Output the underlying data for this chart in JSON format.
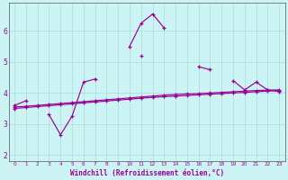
{
  "xlabel": "Windchill (Refroidissement éolien,°C)",
  "bg_color": "#cdf4f4",
  "line_color": "#990099",
  "grid_color": "#aadddd",
  "xlim": [
    -0.5,
    23.5
  ],
  "ylim": [
    1.8,
    6.9
  ],
  "xtick_labels": [
    "0",
    "1",
    "2",
    "3",
    "4",
    "5",
    "6",
    "7",
    "8",
    "9",
    "10",
    "11",
    "12",
    "13",
    "14",
    "15",
    "16",
    "17",
    "18",
    "19",
    "20",
    "21",
    "22",
    "23"
  ],
  "ytick_values": [
    2,
    3,
    4,
    5,
    6
  ],
  "series": [
    [
      3.6,
      3.75,
      null,
      null,
      null,
      null,
      null,
      null,
      null,
      null,
      5.5,
      6.25,
      6.55,
      6.1,
      null,
      null,
      4.85,
      4.75,
      null,
      4.4,
      4.1,
      4.35,
      4.1,
      4.05
    ],
    [
      null,
      null,
      null,
      3.3,
      2.65,
      3.25,
      4.35,
      4.45,
      null,
      null,
      null,
      5.2,
      null,
      null,
      null,
      null,
      null,
      null,
      null,
      null,
      null,
      null,
      null,
      null
    ],
    [
      3.55,
      3.57,
      3.6,
      3.63,
      3.66,
      3.69,
      3.72,
      3.75,
      3.78,
      3.81,
      3.84,
      3.87,
      3.9,
      3.93,
      3.95,
      3.97,
      3.98,
      4.0,
      4.02,
      4.04,
      4.06,
      4.08,
      4.09,
      4.1
    ],
    [
      3.5,
      3.53,
      3.56,
      3.59,
      3.62,
      3.65,
      3.68,
      3.71,
      3.74,
      3.77,
      3.8,
      3.83,
      3.86,
      3.88,
      3.9,
      3.92,
      3.94,
      3.96,
      3.98,
      4.0,
      4.02,
      4.04,
      4.06,
      4.08
    ]
  ]
}
